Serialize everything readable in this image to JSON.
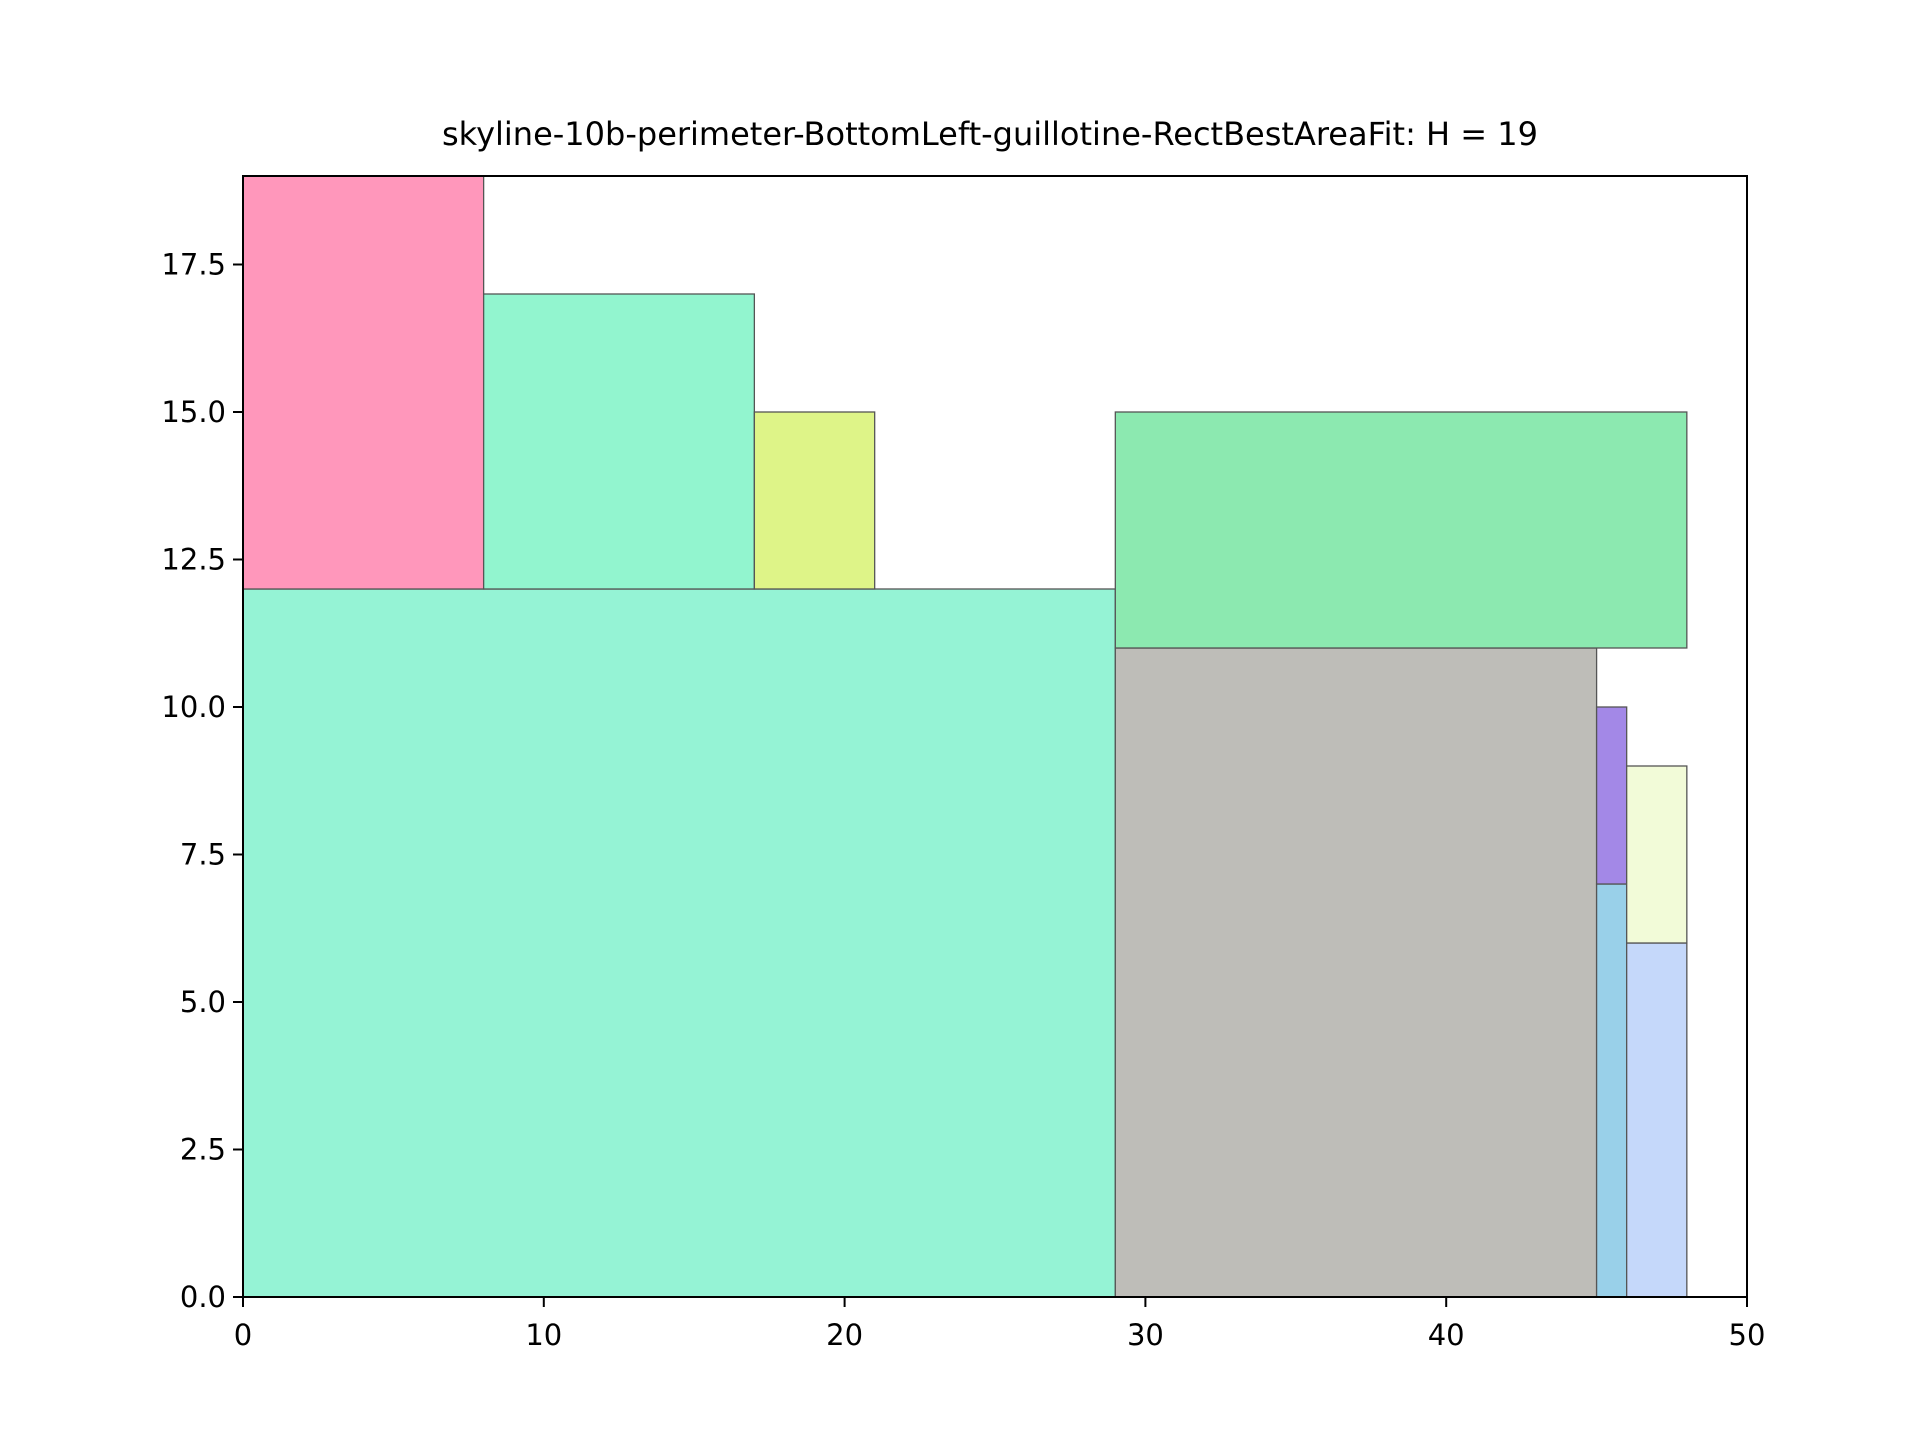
{
  "chart_data": {
    "type": "rectangle-packing",
    "title": "skyline-10b-perimeter-BottomLeft-guillotine-RectBestAreaFit: H = 19",
    "xlabel": "",
    "ylabel": "",
    "xlim": [
      0,
      50
    ],
    "ylim": [
      0,
      19
    ],
    "grid": false,
    "xticks": [
      0,
      10,
      20,
      30,
      40,
      50
    ],
    "xtick_labels": [
      "0",
      "10",
      "20",
      "30",
      "40",
      "50"
    ],
    "yticks": [
      0,
      2.5,
      5,
      7.5,
      10,
      12.5,
      15,
      17.5
    ],
    "ytick_labels": [
      "0.0",
      "2.5",
      "5.0",
      "7.5",
      "10.0",
      "12.5",
      "15.0",
      "17.5"
    ],
    "rectangles": [
      {
        "x": 0,
        "y": 0,
        "w": 29,
        "h": 12,
        "color": "#95f3d5"
      },
      {
        "x": 0,
        "y": 12,
        "w": 8,
        "h": 7,
        "color": "#ff97bb"
      },
      {
        "x": 8,
        "y": 12,
        "w": 9,
        "h": 5,
        "color": "#92f5cf"
      },
      {
        "x": 17,
        "y": 12,
        "w": 4,
        "h": 3,
        "color": "#def488"
      },
      {
        "x": 29,
        "y": 0,
        "w": 16,
        "h": 11,
        "color": "#bebdb8"
      },
      {
        "x": 29,
        "y": 11,
        "w": 19,
        "h": 4,
        "color": "#8ce9b0"
      },
      {
        "x": 45,
        "y": 0,
        "w": 1,
        "h": 7,
        "color": "#99d0e9"
      },
      {
        "x": 45,
        "y": 7,
        "w": 1,
        "h": 3,
        "color": "#a388e7"
      },
      {
        "x": 46,
        "y": 0,
        "w": 2,
        "h": 6,
        "color": "#c5d8fa"
      },
      {
        "x": 46,
        "y": 6,
        "w": 2,
        "h": 3,
        "color": "#f2fbd8"
      }
    ]
  }
}
